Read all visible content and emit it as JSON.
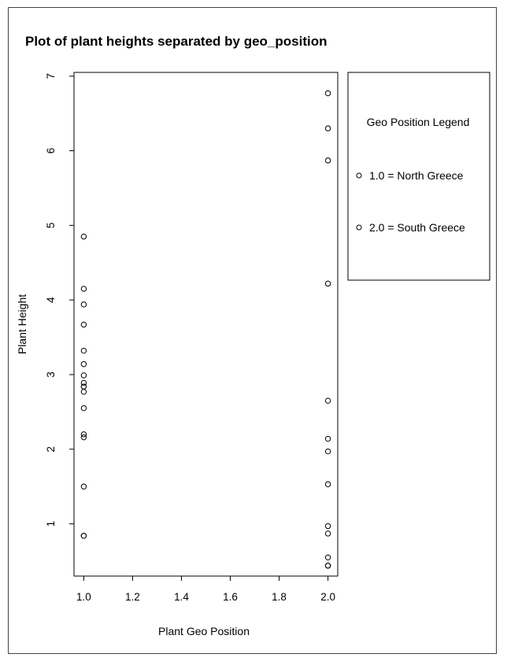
{
  "chart_data": {
    "type": "scatter",
    "title": "Plot of plant heights separated by geo_position",
    "xlabel": "Plant Geo Position",
    "ylabel": "Plant Height",
    "xlim": [
      0.96,
      2.04
    ],
    "ylim": [
      0.3,
      7.05
    ],
    "xticks": [
      "1.0",
      "1.2",
      "1.4",
      "1.6",
      "1.8",
      "2.0"
    ],
    "yticks": [
      "1",
      "2",
      "3",
      "4",
      "5",
      "6",
      "7"
    ],
    "grid": false,
    "series": [
      {
        "x": [
          1.0,
          1.0,
          1.0,
          1.0,
          1.0,
          1.0,
          1.0,
          1.0,
          1.0,
          1.0,
          1.0,
          1.0,
          1.0,
          1.0,
          1.0,
          1.0,
          1.0
        ],
        "y": [
          4.85,
          4.15,
          3.94,
          3.67,
          3.32,
          3.14,
          2.99,
          2.89,
          2.84,
          2.77,
          2.55,
          2.2,
          2.16,
          1.5,
          0.84,
          0.84,
          2.84
        ]
      },
      {
        "x": [
          2.0,
          2.0,
          2.0,
          2.0,
          2.0,
          2.0,
          2.0,
          2.0,
          2.0,
          2.0,
          2.0,
          2.0,
          2.0
        ],
        "y": [
          6.77,
          6.3,
          5.87,
          4.22,
          2.65,
          2.14,
          1.97,
          1.53,
          0.97,
          0.87,
          0.55,
          0.44,
          0.44
        ]
      }
    ],
    "legend": {
      "title": "Geo Position Legend",
      "entries": [
        "1.0 = North Greece",
        "2.0 = South Greece"
      ],
      "placement": "right"
    }
  }
}
